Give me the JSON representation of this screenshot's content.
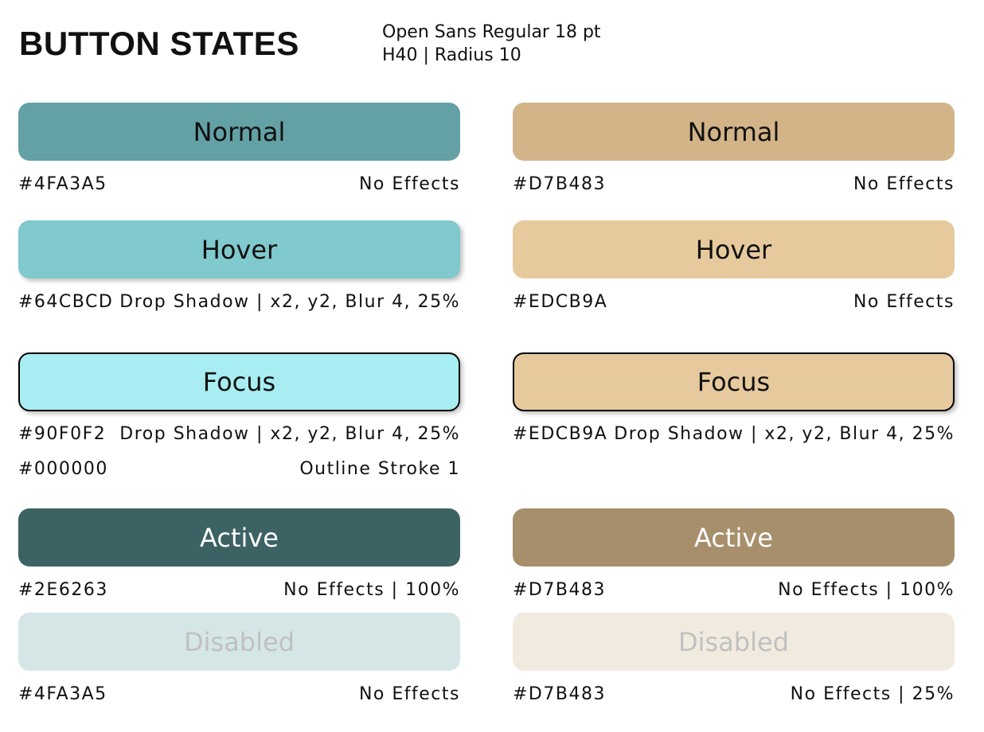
{
  "header": {
    "title": "BUTTON STATES",
    "spec_line1": "Open Sans Regular 18 pt",
    "spec_line2": "H40 | Radius 10"
  },
  "teal": {
    "normal": {
      "label": "Normal",
      "color": "#4FA3A5",
      "hex": "#4FA3A5",
      "effect": "No Effects"
    },
    "hover": {
      "label": "Hover",
      "color": "#64CBCD",
      "hex": "#64CBCD",
      "effect": "Drop Shadow | x2, y2, Blur 4, 25%"
    },
    "focus": {
      "label": "Focus",
      "color": "#90F0F2",
      "hex": "#90F0F2",
      "effect": "Drop Shadow | x2, y2, Blur 4, 25%",
      "outline_hex": "#000000",
      "outline_effect": "Outline Stroke 1"
    },
    "active": {
      "label": "Active",
      "color": "#2E6263",
      "hex": "#2E6263",
      "effect": "No Effects | 100%"
    },
    "disabled": {
      "label": "Disabled",
      "color": "#4FA3A5",
      "hex": "#4FA3A5",
      "effect": "No Effects"
    }
  },
  "tan": {
    "normal": {
      "label": "Normal",
      "color": "#D7B483",
      "hex": "#D7B483",
      "effect": "No Effects"
    },
    "hover": {
      "label": "Hover",
      "color": "#EDCB9A",
      "hex": "#EDCB9A",
      "effect": "No Effects"
    },
    "focus": {
      "label": "Focus",
      "color": "#EDCB9A",
      "hex": "#EDCB9A",
      "effect": "Drop Shadow | x2, y2, Blur 4, 25%"
    },
    "active": {
      "label": "Active",
      "color": "#D7B483",
      "hex": "#D7B483",
      "effect": "No Effects | 100%"
    },
    "disabled": {
      "label": "Disabled",
      "color": "#D7B483",
      "hex": "#D7B483",
      "effect": "No Effects | 25%"
    }
  }
}
